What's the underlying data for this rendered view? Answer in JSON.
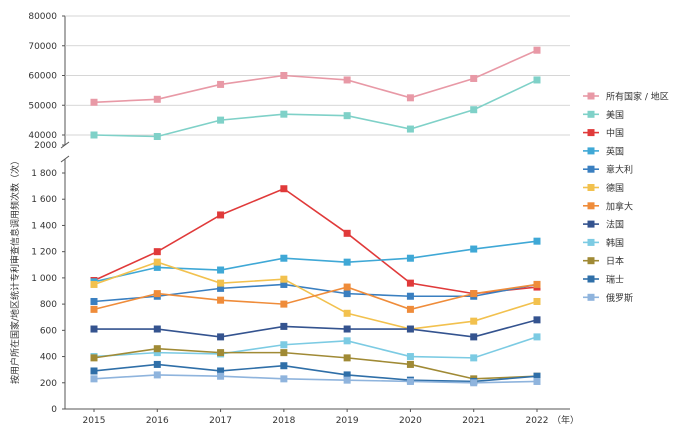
{
  "chart_data": {
    "type": "line",
    "ylabel": "按用户所在国家/地区统计专利审查信息调用频次数（次）",
    "x": [
      "2015",
      "2016",
      "2017",
      "2018",
      "2019",
      "2020",
      "2021",
      "2022"
    ],
    "x_unit": "（年）",
    "y_axis_break": {
      "upper_ylim": [
        40000,
        80000
      ],
      "upper_ticks": [
        "2000",
        "40000",
        "50000",
        "60000",
        "70000",
        "80000"
      ],
      "lower_ylim": [
        0,
        1800
      ],
      "lower_ticks": [
        "0",
        "200",
        "400",
        "600",
        "800",
        "1 000",
        "1 200",
        "1 400",
        "1 600",
        "1 800"
      ]
    },
    "grid": false,
    "legend_position": "right",
    "series": [
      {
        "name": "所有国家 / 地区",
        "color": "#e899a6",
        "values": [
          51000,
          52000,
          57000,
          60000,
          58500,
          52500,
          59000,
          68500
        ]
      },
      {
        "name": "美国",
        "color": "#7fd1c8",
        "values": [
          40000,
          39500,
          45000,
          47000,
          46500,
          42000,
          48500,
          58500
        ]
      },
      {
        "name": "中国",
        "color": "#e03a3a",
        "values": [
          980,
          1200,
          1480,
          1680,
          1340,
          960,
          880,
          930
        ]
      },
      {
        "name": "英国",
        "color": "#3fa8d6",
        "values": [
          970,
          1080,
          1060,
          1150,
          1120,
          1150,
          1220,
          1280
        ]
      },
      {
        "name": "意大利",
        "color": "#3a7fc0",
        "values": [
          820,
          860,
          920,
          950,
          880,
          860,
          860,
          950
        ]
      },
      {
        "name": "德国",
        "color": "#f2c14e",
        "values": [
          950,
          1120,
          960,
          990,
          730,
          610,
          670,
          820
        ]
      },
      {
        "name": "加拿大",
        "color": "#ef8c3a",
        "values": [
          760,
          880,
          830,
          800,
          930,
          760,
          880,
          950
        ]
      },
      {
        "name": "法国",
        "color": "#34538f",
        "values": [
          610,
          610,
          550,
          630,
          610,
          610,
          550,
          680
        ]
      },
      {
        "name": "韩国",
        "color": "#7ccbe3",
        "values": [
          400,
          430,
          420,
          490,
          520,
          400,
          390,
          550
        ]
      },
      {
        "name": "日本",
        "color": "#a08a35",
        "values": [
          390,
          460,
          430,
          430,
          390,
          340,
          230,
          250
        ]
      },
      {
        "name": "瑞士",
        "color": "#2f6fa8",
        "values": [
          290,
          340,
          290,
          330,
          260,
          220,
          210,
          250
        ]
      },
      {
        "name": "俄罗斯",
        "color": "#8fb4dd",
        "values": [
          230,
          260,
          250,
          230,
          220,
          210,
          200,
          210
        ]
      }
    ]
  }
}
